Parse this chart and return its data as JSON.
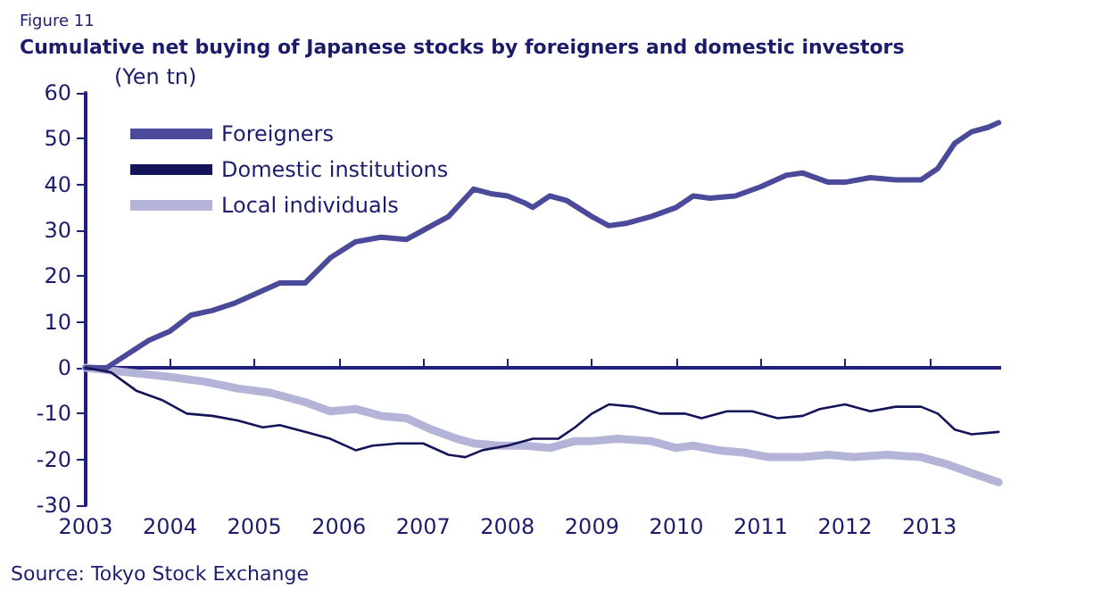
{
  "chart_data": {
    "type": "line",
    "title": "Cumulative net buying of Japanese stocks by foreigners and domestic investors",
    "subtitle": "Figure 11",
    "ylabel": "(Yen tn)",
    "annotations": [
      "Source: Tokyo Stock Exchange"
    ],
    "xlim": [
      2003,
      2013.85
    ],
    "xticks": [
      2003,
      2004,
      2005,
      2006,
      2007,
      2008,
      2009,
      2010,
      2011,
      2012,
      2013
    ],
    "ylim": [
      -30,
      60
    ],
    "yticks": [
      -30,
      -20,
      -10,
      0,
      10,
      20,
      30,
      40,
      50,
      60
    ],
    "grid": false,
    "ref_lines": [
      {
        "axis": "y",
        "value": 0
      }
    ],
    "legend": "top left",
    "marker": "none",
    "series": [
      {
        "name": "Foreigners",
        "color": "#4b4a9a",
        "x": [
          2003,
          2003.25,
          2003.5,
          2003.75,
          2004,
          2004.25,
          2004.5,
          2004.75,
          2005,
          2005.3,
          2005.6,
          2005.9,
          2006.2,
          2006.5,
          2006.8,
          2007,
          2007.3,
          2007.5,
          2007.6,
          2007.8,
          2008,
          2008.2,
          2008.3,
          2008.5,
          2008.7,
          2009,
          2009.2,
          2009.4,
          2009.7,
          2010,
          2010.2,
          2010.4,
          2010.7,
          2011,
          2011.3,
          2011.5,
          2011.8,
          2012,
          2012.3,
          2012.6,
          2012.9,
          2013.1,
          2013.3,
          2013.5,
          2013.7,
          2013.82
        ],
        "values": [
          0,
          0,
          3,
          6,
          8,
          11.5,
          12.5,
          14,
          16,
          18.5,
          18.5,
          24,
          27.5,
          28.5,
          28,
          30,
          33,
          37,
          39,
          38,
          37.5,
          36,
          35,
          37.5,
          36.5,
          33,
          31,
          31.5,
          33,
          35,
          37.5,
          37,
          37.5,
          39.5,
          42,
          42.5,
          40.5,
          40.5,
          41.5,
          41,
          41,
          43.5,
          49,
          51.5,
          52.5,
          53.5
        ]
      },
      {
        "name": "Domestic institutions",
        "color": "#14145a",
        "x": [
          2003,
          2003.3,
          2003.6,
          2003.9,
          2004.2,
          2004.5,
          2004.8,
          2005.1,
          2005.3,
          2005.6,
          2005.9,
          2006.2,
          2006.4,
          2006.7,
          2007,
          2007.3,
          2007.5,
          2007.7,
          2008,
          2008.3,
          2008.6,
          2008.8,
          2009,
          2009.2,
          2009.5,
          2009.8,
          2010.1,
          2010.3,
          2010.6,
          2010.9,
          2011.2,
          2011.5,
          2011.7,
          2012,
          2012.3,
          2012.6,
          2012.9,
          2013.1,
          2013.3,
          2013.5,
          2013.82
        ],
        "values": [
          0,
          -1,
          -5,
          -7,
          -10,
          -10.5,
          -11.5,
          -13,
          -12.5,
          -14,
          -15.5,
          -18,
          -17,
          -16.5,
          -16.5,
          -19,
          -19.5,
          -18,
          -17,
          -15.5,
          -15.5,
          -13,
          -10,
          -8,
          -8.5,
          -10,
          -10,
          -11,
          -9.5,
          -9.5,
          -11,
          -10.5,
          -9,
          -8,
          -9.5,
          -8.5,
          -8.5,
          -10,
          -13.5,
          -14.5,
          -14
        ]
      },
      {
        "name": "Local individuals",
        "color": "#b4b4d8",
        "x": [
          2003,
          2003.5,
          2004,
          2004.4,
          2004.8,
          2005.2,
          2005.6,
          2005.9,
          2006.2,
          2006.5,
          2006.8,
          2007.1,
          2007.4,
          2007.6,
          2007.9,
          2008.2,
          2008.5,
          2008.8,
          2009,
          2009.3,
          2009.7,
          2010,
          2010.2,
          2010.5,
          2010.8,
          2011.1,
          2011.5,
          2011.8,
          2012.1,
          2012.5,
          2012.9,
          2013.2,
          2013.5,
          2013.82
        ],
        "values": [
          0,
          -1,
          -2,
          -3,
          -4.5,
          -5.5,
          -7.5,
          -9.5,
          -9,
          -10.5,
          -11,
          -13.5,
          -15.5,
          -16.5,
          -17,
          -17,
          -17.5,
          -16,
          -16,
          -15.5,
          -16,
          -17.5,
          -17,
          -18,
          -18.5,
          -19.5,
          -19.5,
          -19,
          -19.5,
          -19,
          -19.5,
          -21,
          -23,
          -25
        ]
      }
    ]
  }
}
